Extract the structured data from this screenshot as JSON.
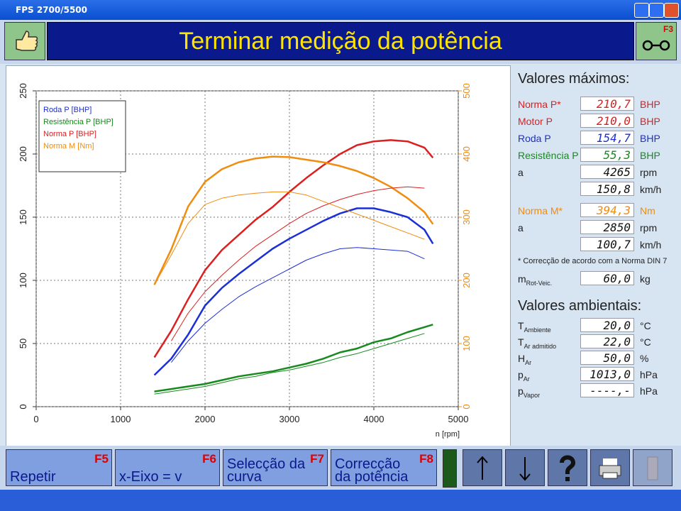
{
  "window": {
    "title": "FPS 2700/5500"
  },
  "header": {
    "title": "Terminar medição da potência",
    "right_key": "F3"
  },
  "chart_data": {
    "type": "line",
    "x": [
      1400,
      1600,
      1800,
      2000,
      2200,
      2400,
      2600,
      2800,
      3000,
      3200,
      3400,
      3600,
      3800,
      4000,
      4200,
      4400,
      4600,
      4700
    ],
    "series": [
      {
        "name": "Roda P [BHP]",
        "color": "#1a2fd6",
        "width": 2.5,
        "values": [
          25,
          38,
          57,
          80,
          94,
          105,
          115,
          125,
          133,
          140,
          147,
          153,
          157,
          157,
          154,
          150,
          140,
          129
        ]
      },
      {
        "name": "Resistência P [BHP]",
        "color": "#178a1e",
        "width": 2.5,
        "values": [
          12,
          14,
          16,
          18,
          21,
          24,
          26,
          28,
          31,
          34,
          38,
          43,
          46,
          51,
          54,
          59,
          63,
          65
        ]
      },
      {
        "name": "Norma P [BHP]",
        "color": "#dc1f1f",
        "width": 2.5,
        "values": [
          39,
          60,
          85,
          108,
          124,
          136,
          148,
          158,
          170,
          181,
          191,
          200,
          207,
          210,
          211,
          210,
          205,
          197
        ]
      },
      {
        "name": "Norma M [Nm]",
        "color": "#f08c10",
        "width": 2.5,
        "axis": "y2",
        "values": [
          193,
          249,
          317,
          356,
          376,
          387,
          393,
          396,
          395,
          391,
          387,
          381,
          373,
          362,
          348,
          330,
          308,
          289
        ]
      },
      {
        "color": "#1a2fd6",
        "width": 1,
        "values": [
          null,
          35,
          52,
          66,
          77,
          87,
          95,
          102,
          109,
          116,
          121,
          125,
          126,
          125,
          124,
          123,
          117,
          null
        ]
      },
      {
        "color": "#178a1e",
        "width": 1,
        "values": [
          10,
          12,
          14,
          16,
          19,
          22,
          24,
          27,
          29,
          32,
          35,
          39,
          42,
          46,
          50,
          54,
          58,
          null
        ]
      },
      {
        "color": "#dc1f1f",
        "width": 1,
        "values": [
          null,
          52,
          74,
          91,
          104,
          116,
          127,
          136,
          145,
          153,
          159,
          164,
          168,
          171,
          173,
          174,
          173,
          null
        ]
      },
      {
        "color": "#f08c10",
        "width": 1,
        "axis": "y2",
        "values": [
          193,
          240,
          290,
          320,
          330,
          335,
          338,
          340,
          340,
          335,
          325,
          315,
          305,
          295,
          285,
          275,
          265,
          null
        ]
      }
    ],
    "xlim": [
      0,
      5000
    ],
    "xticks": [
      0,
      1000,
      2000,
      3000,
      4000,
      5000
    ],
    "xlabel": "n [rpm]",
    "ylim": [
      0,
      250
    ],
    "yticks": [
      0,
      50,
      100,
      150,
      200,
      250
    ],
    "y2lim": [
      0,
      500
    ],
    "y2ticks": [
      0,
      100,
      200,
      300,
      400,
      500
    ],
    "y2color": "#f08c10",
    "grid": true,
    "legend": "upper left"
  },
  "panel": {
    "max_title": "Valores máximos:",
    "max_rows": [
      {
        "label": "Norma P*",
        "value": "210,7",
        "unit": "BHP"
      },
      {
        "label": "Motor P",
        "value": "210,0",
        "unit": "BHP"
      },
      {
        "label": "Roda P",
        "value": "154,7",
        "unit": "BHP"
      },
      {
        "label": "Resistência P",
        "value": "55,3",
        "unit": "BHP"
      },
      {
        "label": "a",
        "value": "4265",
        "unit": "rpm"
      },
      {
        "value": "150,8",
        "unit": "km/h"
      }
    ],
    "torque_rows": [
      {
        "label": "Norma M*",
        "value": "394,3",
        "unit": "Nm"
      },
      {
        "label": "a",
        "value": "2850",
        "unit": "rpm"
      },
      {
        "value": "100,7",
        "unit": "km/h"
      }
    ],
    "note": "* Correcção de acordo com a Norma DIN 7",
    "mass": {
      "label": "m",
      "sub": "Rot-Veic.",
      "value": "60,0",
      "unit": "kg"
    },
    "ambient_title": "Valores ambientais:",
    "ambient_rows": [
      {
        "label": "T",
        "sub": "Ambiente",
        "value": "20,0",
        "unit": "°C"
      },
      {
        "label": "T",
        "sub": "Ar admitido",
        "value": "22,0",
        "unit": "°C"
      },
      {
        "label": "H",
        "sub": "Ar",
        "value": "50,0",
        "unit": "%"
      },
      {
        "label": "p",
        "sub": "Ar",
        "value": "1013,0",
        "unit": "hPa"
      },
      {
        "label": "p",
        "sub": "Vapor",
        "value": "----,-",
        "unit": "hPa"
      }
    ]
  },
  "toolbar": [
    {
      "label": "Repetir",
      "key": "F5"
    },
    {
      "label": "x-Eixo = v",
      "key": "F6"
    },
    {
      "label": "Selecção da curva",
      "key": "F7"
    },
    {
      "label": "Correcção da potência",
      "key": "F8"
    }
  ]
}
